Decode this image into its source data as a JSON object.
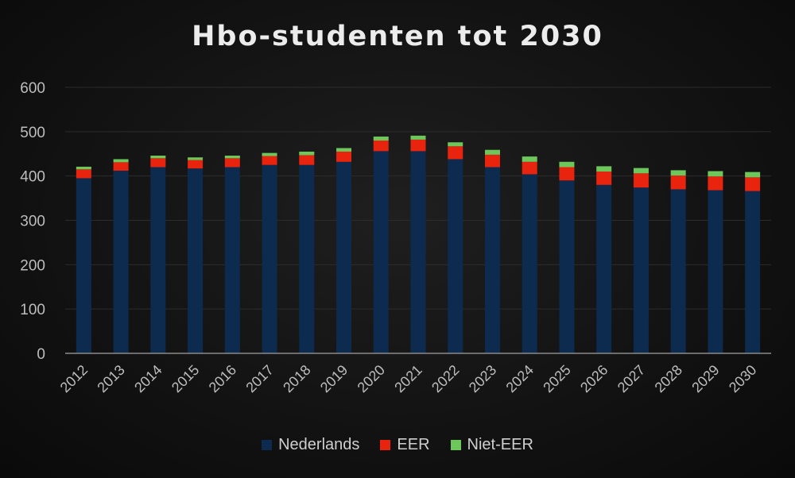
{
  "colors": {
    "background": "#141414",
    "nederlands": "#0d2b4e",
    "eer": "#e8230e",
    "niet_eer": "#6dc75a",
    "axis_text": "#bdbdbd",
    "gridline": "#2c2c2c"
  },
  "chart_data": {
    "type": "bar",
    "stacked": true,
    "title": "Hbo-studenten tot 2030",
    "xlabel": "",
    "ylabel": "",
    "ylim": [
      0,
      600
    ],
    "yticks": [
      0,
      100,
      200,
      300,
      400,
      500,
      600
    ],
    "grid": true,
    "legend_position": "bottom",
    "categories": [
      "2012",
      "2013",
      "2014",
      "2015",
      "2016",
      "2017",
      "2018",
      "2019",
      "2020",
      "2021",
      "2022",
      "2023",
      "2024",
      "2025",
      "2026",
      "2027",
      "2028",
      "2029",
      "2030"
    ],
    "series": [
      {
        "name": "Nederlands",
        "values": [
          395,
          412,
          420,
          417,
          420,
          425,
          425,
          432,
          456,
          456,
          438,
          420,
          404,
          390,
          380,
          374,
          370,
          368,
          366
        ]
      },
      {
        "name": "EER",
        "values": [
          20,
          19,
          20,
          19,
          20,
          20,
          22,
          23,
          24,
          26,
          29,
          28,
          28,
          30,
          30,
          32,
          31,
          31,
          31
        ]
      },
      {
        "name": "Niet-EER",
        "values": [
          6,
          7,
          6,
          6,
          6,
          7,
          8,
          8,
          9,
          9,
          9,
          11,
          12,
          12,
          12,
          12,
          12,
          12,
          12
        ]
      }
    ]
  }
}
